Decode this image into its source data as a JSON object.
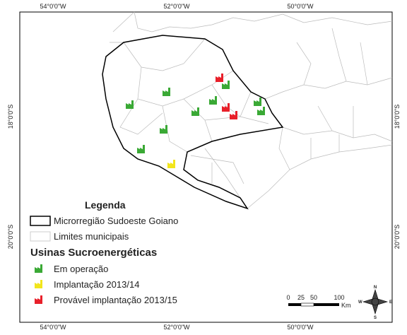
{
  "map": {
    "graticule": {
      "top": [
        "54°0'0\"W",
        "52°0'0\"W",
        "50°0'0\"W"
      ],
      "bottom": [
        "54°0'0\"W",
        "52°0'0\"W",
        "50°0'0\"W"
      ],
      "left": [
        "18°0'0\"S",
        "20°0'0\"S"
      ],
      "right": [
        "18°0'0\"S",
        "20°0'0\"S"
      ]
    },
    "legend": {
      "title": "Legenda",
      "region": "Microrregião Sudoeste Goiano",
      "municipal": "Limites municipais",
      "plants_title": "Usinas Sucroenergéticas",
      "plants": [
        {
          "label": "Em operação",
          "color": "#3aa935"
        },
        {
          "label": "Implantação 2013/14",
          "color": "#f2e51c"
        },
        {
          "label": "Provável implantação 2013/15",
          "color": "#e8202a"
        }
      ]
    },
    "scale_bar": {
      "labels": [
        0,
        25,
        50,
        100
      ],
      "unit": "Km"
    },
    "north_arrow": {
      "n": "N",
      "s": "S",
      "e": "E",
      "w": "W"
    }
  }
}
